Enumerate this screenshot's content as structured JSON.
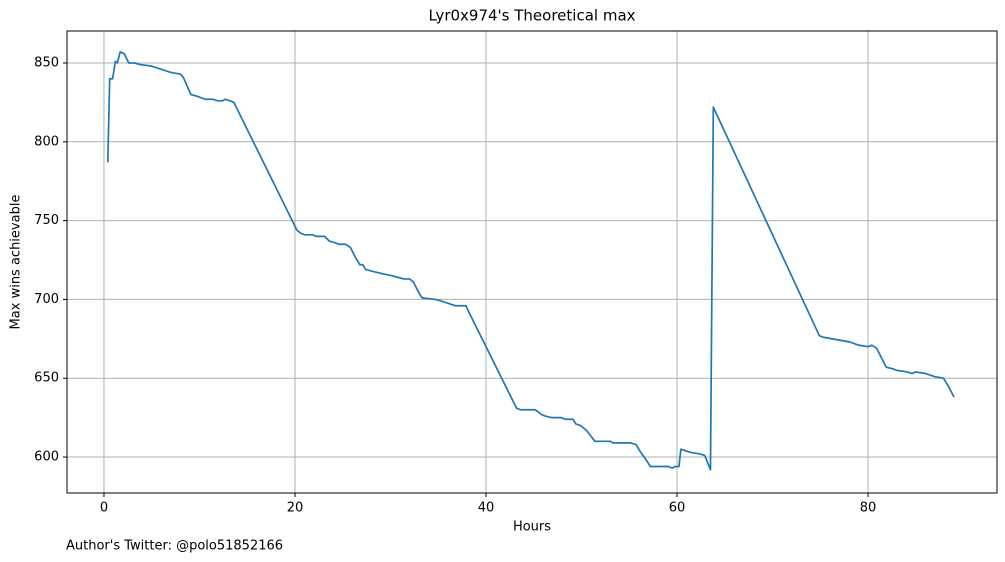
{
  "chart_data": {
    "type": "line",
    "title": "Lyr0x974's Theoretical max",
    "x_label": "Hours",
    "y_label": "Max wins achievable",
    "annotation": "Author's Twitter: @polo51852166",
    "x": [
      0.4,
      0.6,
      0.9,
      1.2,
      1.4,
      1.7,
      2.1,
      2.6,
      3.2,
      3.8,
      5.0,
      6.5,
      7.0,
      8.0,
      8.3,
      9.1,
      9.7,
      10.6,
      11.4,
      11.9,
      12.4,
      12.7,
      13.2,
      13.6,
      20.2,
      20.6,
      21.0,
      21.9,
      22.2,
      23.1,
      23.6,
      24.2,
      24.6,
      25.3,
      25.8,
      26.3,
      26.8,
      27.1,
      27.4,
      28.0,
      28.7,
      29.4,
      30.2,
      30.8,
      31.4,
      32.0,
      32.4,
      32.9,
      33.3,
      34.7,
      35.3,
      35.8,
      36.3,
      36.8,
      37.9,
      38.2,
      43.2,
      43.6,
      45.1,
      45.4,
      45.8,
      46.2,
      46.9,
      47.9,
      48.3,
      49.1,
      49.4,
      49.9,
      50.5,
      50.9,
      51.4,
      53.0,
      53.3,
      55.1,
      55.7,
      56.2,
      56.8,
      57.2,
      59.1,
      59.5,
      59.8,
      60.2,
      60.4,
      60.9,
      61.4,
      62.4,
      62.9,
      63.5,
      63.8,
      74.9,
      75.3,
      78.1,
      79.0,
      80.0,
      80.4,
      80.9,
      81.4,
      81.9,
      82.6,
      83.0,
      84.1,
      84.6,
      85.0,
      86.0,
      86.5,
      87.0,
      87.9,
      88.4,
      89.0
    ],
    "values": [
      787,
      840,
      840,
      851,
      850,
      857,
      856,
      850,
      850,
      849,
      848,
      845,
      844,
      843,
      841,
      830,
      829,
      827,
      827,
      826,
      826,
      827,
      826,
      825,
      744,
      742,
      741,
      741,
      740,
      740,
      737,
      736,
      735,
      735,
      733,
      727,
      722,
      722,
      719,
      718,
      717,
      716,
      715,
      714,
      713,
      713,
      711,
      705,
      701,
      700,
      699,
      698,
      697,
      696,
      696,
      692,
      631,
      630,
      630,
      629,
      627,
      626,
      625,
      625,
      624,
      624,
      621,
      620,
      617,
      614,
      610,
      610,
      609,
      609,
      608,
      603,
      598,
      594,
      594,
      593,
      594,
      594,
      605,
      604,
      603,
      602,
      601,
      592,
      822,
      677,
      676,
      673,
      671,
      670,
      671,
      669,
      663,
      657,
      656,
      655,
      654,
      653,
      654,
      653,
      652,
      651,
      650,
      645,
      638
    ],
    "color": "#1f77b4",
    "xlim": [
      -3.87,
      93.5
    ],
    "xticks": [
      0,
      20,
      40,
      60,
      80
    ],
    "ylim": [
      577.2,
      870.3
    ],
    "yticks": [
      600,
      650,
      700,
      750,
      800,
      850
    ],
    "grid": true
  }
}
